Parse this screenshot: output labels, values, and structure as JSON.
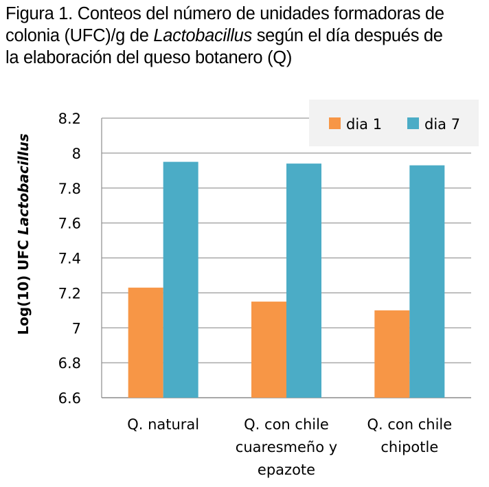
{
  "caption": {
    "line1": "Figura 1. Conteos del número de unidades formadoras de",
    "line2_pre": "colonia (UFC)/g de ",
    "line2_italic": "Lactobacillus",
    "line2_post": " según el día después de",
    "line3": "la elaboración del queso botanero (Q)"
  },
  "chart_data": {
    "type": "bar",
    "categories": [
      [
        "Q. natural"
      ],
      [
        "Q. con chile",
        "cuaresmeño y",
        "epazote"
      ],
      [
        "Q. con chile",
        "chipotle"
      ]
    ],
    "series": [
      {
        "name": "dia 1",
        "color": "#F79646",
        "values": [
          7.23,
          7.15,
          7.1
        ]
      },
      {
        "name": "dia 7",
        "color": "#4BACC6",
        "values": [
          7.95,
          7.94,
          7.93
        ]
      }
    ],
    "ylabel_prefix": "Log(10) UFC",
    "ylabel_italic": "Lactobacillus",
    "ylim": [
      6.6,
      8.2
    ],
    "yticks": [
      "6.6",
      "6.8",
      "7",
      "7.2",
      "7.4",
      "7.6",
      "7.8",
      "8",
      "8.2"
    ],
    "grid": true,
    "legend_position": "top-right"
  }
}
